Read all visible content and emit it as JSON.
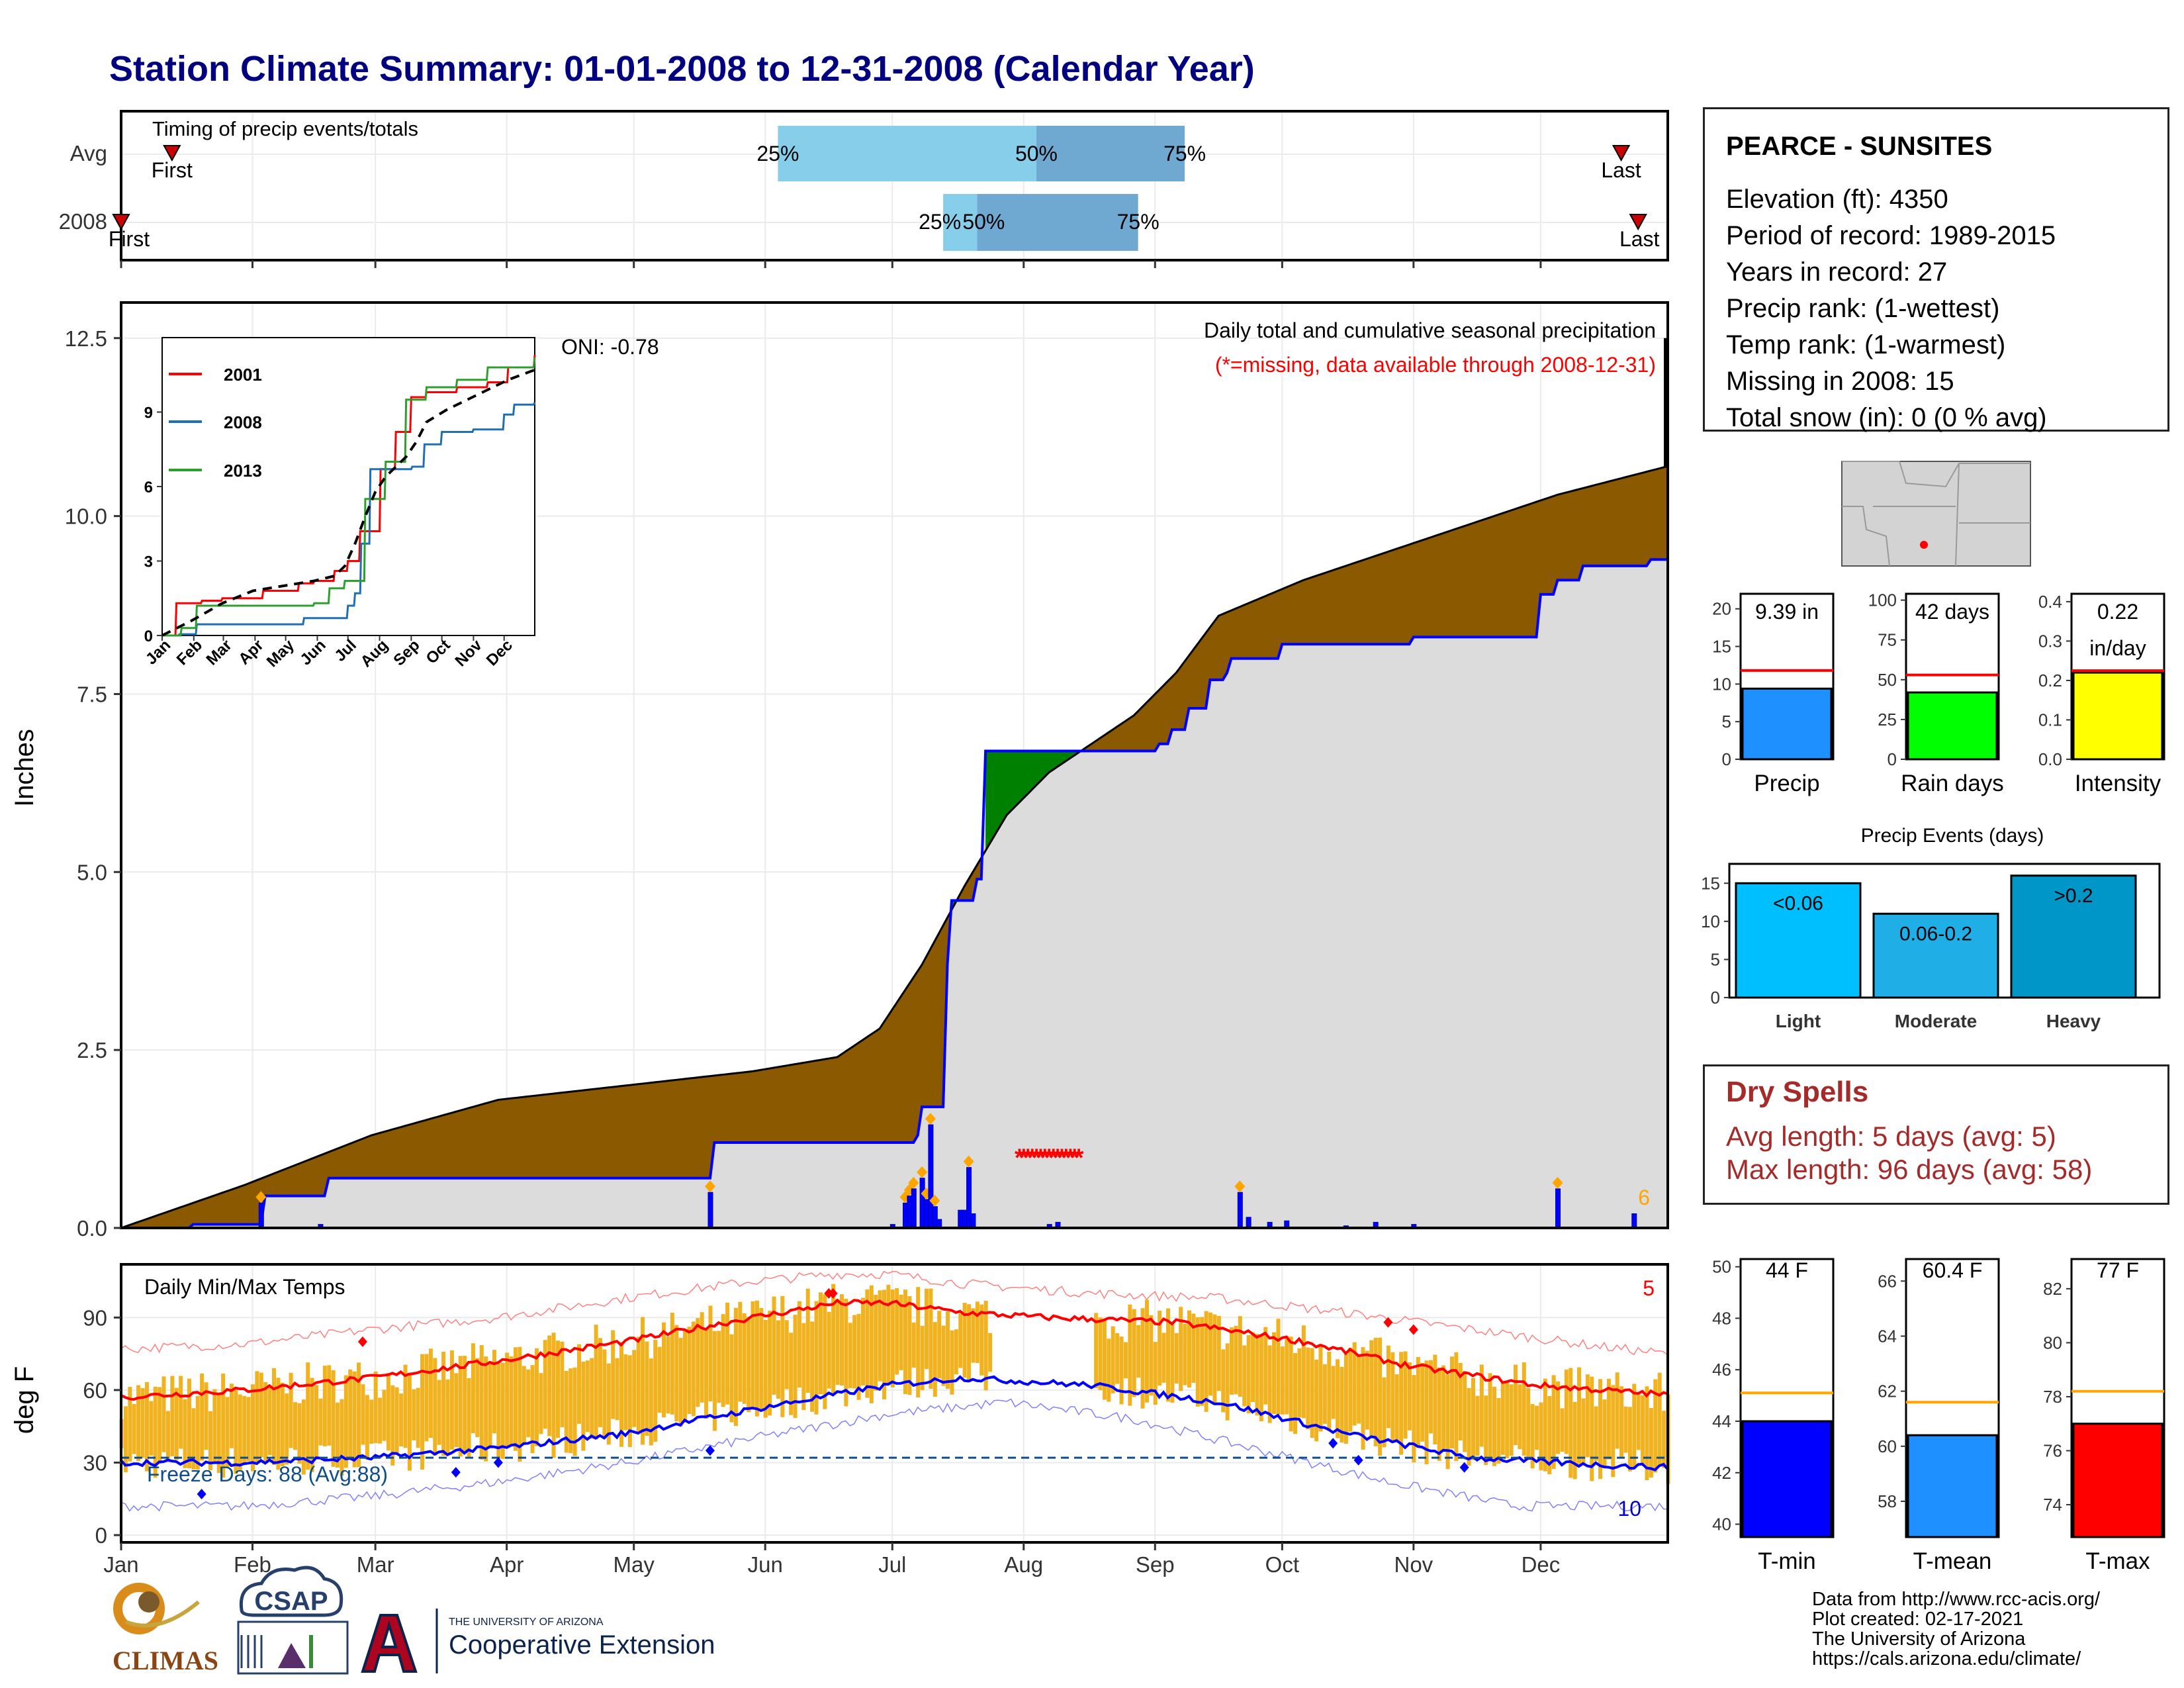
{
  "title": "Station Climate Summary: 01-01-2008 to 12-31-2008 (Calendar Year)",
  "timing": {
    "label": "Timing of precip events/totals",
    "rows": [
      "Avg",
      "2008"
    ],
    "first": "First",
    "last": "Last",
    "pct_labels": [
      "25%",
      "50%",
      "75%"
    ],
    "avg_doy": {
      "first": 13,
      "p25": 156,
      "p50": 217,
      "p75": 252,
      "last": 355
    },
    "y2008_doy": {
      "first": 1,
      "p25": 195,
      "p50": 203,
      "p75": 241,
      "last": 359
    }
  },
  "station": {
    "name": "PEARCE - SUNSITES",
    "lines": [
      "Elevation (ft): 4350",
      "Period of record: 1989-2015",
      "Years in record: 27",
      "Precip rank:  (1-wettest)",
      "Temp rank:  (1-warmest)",
      "Missing in 2008: 15",
      "Total snow (in): 0 (0 % avg)"
    ]
  },
  "precip_panel": {
    "ylabel": "Inches",
    "y_ticks": [
      "0.0",
      "2.5",
      "5.0",
      "7.5",
      "10.0",
      "12.5"
    ],
    "ylim": [
      0,
      13
    ],
    "header": "Daily total and cumulative seasonal precipitation",
    "missing_note": "(*=missing, data available through 2008-12-31)",
    "oni": "ONI: -0.78",
    "extreme_count": "6"
  },
  "inset": {
    "y_ticks": [
      "0",
      "3",
      "6",
      "9"
    ],
    "x_ticks": [
      "Jan",
      "Feb",
      "Mar",
      "Apr",
      "May",
      "Jun",
      "Jul",
      "Aug",
      "Sep",
      "Oct",
      "Nov",
      "Dec"
    ],
    "legend": [
      "2001",
      "2008",
      "2013"
    ]
  },
  "temp_panel": {
    "ylabel": "deg F",
    "label": "Daily Min/Max Temps",
    "y_ticks": [
      "0",
      "30",
      "60",
      "90"
    ],
    "ylim": [
      -3,
      112
    ],
    "freeze_text": "Freeze Days: 88 (Avg:88)",
    "freeze_line": 32,
    "max_count": "5",
    "min_count": "10"
  },
  "months": [
    "Jan",
    "Feb",
    "Mar",
    "Apr",
    "May",
    "Jun",
    "Jul",
    "Aug",
    "Sep",
    "Oct",
    "Nov",
    "Dec"
  ],
  "summary_bars": {
    "precip": {
      "label": "Precip",
      "value_text": "9.39 in",
      "ticks": [
        "0",
        "5",
        "10",
        "15",
        "20"
      ]
    },
    "raindays": {
      "label": "Rain days",
      "value_text": "42 days",
      "ticks": [
        "0",
        "25",
        "50",
        "75",
        "100"
      ]
    },
    "intensity": {
      "label": "Intensity",
      "value_text": "0.22",
      "value_unit": "in/day",
      "ticks": [
        "0.0",
        "0.1",
        "0.2",
        "0.3",
        "0.4"
      ]
    }
  },
  "events": {
    "title": "Precip Events (days)",
    "ticks": [
      "0",
      "5",
      "10",
      "15"
    ],
    "categories": [
      "Light",
      "Moderate",
      "Heavy"
    ],
    "bar_labels": [
      "<0.06",
      "0.06-0.2",
      ">0.2"
    ]
  },
  "dry_spells": {
    "title": "Dry Spells",
    "avg": "Avg length: 5 days (avg: 5)",
    "max": "Max length: 96 days (avg: 58)"
  },
  "temp_bars": {
    "tmin": {
      "label": "T-min",
      "value_text": "44 F",
      "ticks": [
        "40",
        "42",
        "44",
        "46",
        "48",
        "50"
      ]
    },
    "tmean": {
      "label": "T-mean",
      "value_text": "60.4 F",
      "ticks": [
        "58",
        "60",
        "62",
        "64",
        "66"
      ]
    },
    "tmax": {
      "label": "T-max",
      "value_text": "77 F",
      "ticks": [
        "74",
        "76",
        "78",
        "80",
        "82"
      ]
    }
  },
  "logos": {
    "climas": "CLIMAS",
    "csap": "CSAP",
    "ua_small": "THE UNIVERSITY OF ARIZONA",
    "ua_big": "Cooperative Extension"
  },
  "footer": [
    "Data from http://www.rcc-acis.org/",
    "Plot created: 02-17-2021",
    "The University of Arizona",
    "https://cals.arizona.edu/climate/"
  ],
  "colors": {
    "title": "#000080",
    "avg_fill": "#8b5a00",
    "obs_fill": "#dcdcdc",
    "above_fill": "#008000",
    "cum_line": "#0000ff",
    "daily_bar": "#0000ff",
    "extreme": "#ffa500",
    "temp_bar": "#f0b21e",
    "tmax": "#ff0000",
    "tmin": "#0000ff",
    "light": "#00bfff",
    "moderate": "#1faee6",
    "heavy": "#0096c8",
    "dry": "#a52a2a"
  },
  "chart_data": [
    {
      "type": "area",
      "title": "Daily total and cumulative seasonal precipitation",
      "ylabel": "Inches",
      "ylim": [
        0,
        13
      ],
      "x_unit": "day of year 2008",
      "series": [
        {
          "name": "",
          "kind": "cumulative 2008",
          "x": [
            1,
            18,
            34,
            35,
            50,
            140,
            141,
            183,
            189,
            190,
            196,
            197,
            203,
            205,
            245,
            246,
            249,
            253,
            258,
            262,
            263,
            274,
            275,
            305,
            306,
            306,
            335,
            336,
            340,
            345,
            346,
            362,
            366
          ],
          "y": [
            0,
            0.05,
            0.05,
            0.45,
            0.7,
            0.7,
            1.2,
            1.2,
            1.3,
            1.7,
            3.7,
            4.6,
            4.9,
            6.7,
            6.7,
            6.8,
            7.0,
            7.3,
            7.7,
            7.8,
            8.0,
            8.0,
            8.2,
            8.2,
            8.3,
            8.3,
            8.3,
            8.9,
            9.1,
            9.1,
            9.3,
            9.39,
            9.39
          ]
        },
        {
          "name": "",
          "kind": "cumulative average",
          "x": [
            1,
            30,
            60,
            90,
            120,
            150,
            170,
            180,
            190,
            200,
            210,
            220,
            230,
            240,
            250,
            260,
            280,
            300,
            320,
            340,
            366
          ],
          "y": [
            0,
            0.6,
            1.3,
            1.8,
            2.0,
            2.2,
            2.4,
            2.8,
            3.7,
            4.8,
            5.8,
            6.4,
            6.8,
            7.2,
            7.8,
            8.6,
            9.1,
            9.5,
            9.9,
            10.3,
            10.7
          ]
        },
        {
          "name": "",
          "kind": "daily precip",
          "x": [
            34,
            48,
            140,
            183,
            186,
            187,
            188,
            190,
            191,
            192,
            193,
            194,
            199,
            200,
            201,
            202,
            220,
            222,
            265,
            267,
            272,
            276,
            290,
            297,
            306,
            340,
            358
          ],
          "y": [
            0.35,
            0.05,
            0.5,
            0.05,
            0.35,
            0.45,
            0.55,
            0.7,
            0.4,
            1.45,
            0.3,
            0.12,
            0.25,
            0.25,
            0.85,
            0.2,
            0.05,
            0.08,
            0.5,
            0.15,
            0.08,
            0.1,
            0.03,
            0.08,
            0.05,
            0.55,
            0.2
          ]
        },
        {
          "name": "",
          "kind": "missing days",
          "x": [
            213,
            214,
            215,
            216,
            217,
            218,
            219,
            220,
            221,
            222,
            223,
            224,
            225,
            226,
            227
          ],
          "y": [
            1.0,
            1.0,
            1.0,
            1.0,
            1.0,
            1.0,
            1.0,
            1.0,
            1.0,
            1.0,
            1.0,
            1.0,
            1.0,
            1.0,
            1.0
          ]
        }
      ]
    },
    {
      "type": "line",
      "x_unit": "month",
      "categories": [
        "Jan",
        "Feb",
        "Mar",
        "Apr",
        "May",
        "Jun",
        "Jul",
        "Aug",
        "Sep",
        "Oct",
        "Nov",
        "Dec"
      ],
      "series": [
        {
          "name": "2001",
          "x": [
            1,
            15,
            40,
            60,
            100,
            135,
            150,
            170,
            183,
            195,
            215,
            230,
            245,
            260,
            290,
            320,
            340,
            366
          ],
          "y": [
            0,
            1.3,
            1.4,
            1.5,
            1.8,
            2.1,
            2.2,
            2.6,
            3.0,
            4.2,
            6.7,
            8.2,
            9.6,
            9.8,
            10.0,
            10.2,
            10.8,
            11.3
          ]
        },
        {
          "name": "2008",
          "x": [
            1,
            18,
            35,
            140,
            183,
            190,
            196,
            205,
            246,
            258,
            275,
            306,
            336,
            346,
            366
          ],
          "y": [
            0,
            0.05,
            0.45,
            0.7,
            1.2,
            1.7,
            3.7,
            6.7,
            6.8,
            7.7,
            8.2,
            8.3,
            8.9,
            9.3,
            9.39
          ]
        },
        {
          "name": "2013",
          "x": [
            1,
            20,
            35,
            100,
            150,
            165,
            180,
            200,
            220,
            240,
            260,
            290,
            320,
            366
          ],
          "y": [
            0,
            0.3,
            1.2,
            1.2,
            1.3,
            1.9,
            2.2,
            5.5,
            7.0,
            9.5,
            10.0,
            10.3,
            10.8,
            11.2
          ]
        },
        {
          "name": "",
          "kind": "average",
          "x": [
            1,
            30,
            60,
            90,
            120,
            150,
            170,
            180,
            190,
            200,
            210,
            220,
            230,
            240,
            250,
            260,
            280,
            300,
            320,
            340,
            366
          ],
          "y": [
            0,
            0.6,
            1.3,
            1.8,
            2.0,
            2.2,
            2.4,
            2.8,
            3.7,
            4.8,
            5.8,
            6.4,
            6.8,
            7.2,
            7.8,
            8.6,
            9.1,
            9.5,
            9.9,
            10.3,
            10.7
          ]
        }
      ],
      "ylim": [
        0,
        12
      ]
    },
    {
      "type": "line",
      "title": "Daily Min/Max Temps",
      "ylabel": "deg F",
      "ylim": [
        -3,
        112
      ],
      "x_unit": "day of year 2008",
      "series": [
        {
          "name": "",
          "kind": "avg max",
          "x": [
            1,
            30,
            60,
            90,
            120,
            150,
            170,
            182,
            200,
            220,
            250,
            280,
            305,
            335,
            366
          ],
          "y": [
            57,
            60,
            65,
            72,
            80,
            90,
            96,
            96,
            92,
            90,
            88,
            80,
            70,
            62,
            58
          ]
        },
        {
          "name": "",
          "kind": "avg min",
          "x": [
            1,
            30,
            60,
            90,
            120,
            150,
            182,
            200,
            230,
            260,
            290,
            320,
            350,
            366
          ],
          "y": [
            30,
            30,
            32,
            36,
            42,
            52,
            62,
            65,
            62,
            55,
            42,
            32,
            29,
            28
          ]
        },
        {
          "name": "",
          "kind": "record max",
          "x": [
            1,
            30,
            60,
            90,
            120,
            150,
            170,
            182,
            200,
            230,
            260,
            290,
            320,
            350,
            366
          ],
          "y": [
            77,
            79,
            85,
            90,
            98,
            105,
            108,
            108,
            104,
            100,
            98,
            92,
            85,
            78,
            75
          ]
        },
        {
          "name": "",
          "kind": "record min",
          "x": [
            1,
            30,
            60,
            90,
            120,
            150,
            182,
            210,
            240,
            270,
            300,
            330,
            366
          ],
          "y": [
            12,
            12,
            16,
            22,
            30,
            40,
            50,
            55,
            48,
            35,
            22,
            12,
            12
          ]
        }
      ],
      "freeze_line": 32
    },
    {
      "type": "bar",
      "categories": [
        "Precip",
        "Rain days",
        "Intensity"
      ],
      "values": [
        9.39,
        42,
        0.22
      ],
      "averages": [
        11.8,
        53,
        0.225
      ]
    },
    {
      "type": "bar",
      "title": "Precip Events (days)",
      "categories": [
        "Light",
        "Moderate",
        "Heavy"
      ],
      "values": [
        15,
        11,
        16
      ],
      "ylim": [
        0,
        16.5
      ]
    },
    {
      "type": "bar",
      "categories": [
        "T-min",
        "T-mean",
        "T-max"
      ],
      "values": [
        44,
        60.4,
        77
      ],
      "averages": [
        45.1,
        61.6,
        78.2
      ]
    }
  ]
}
